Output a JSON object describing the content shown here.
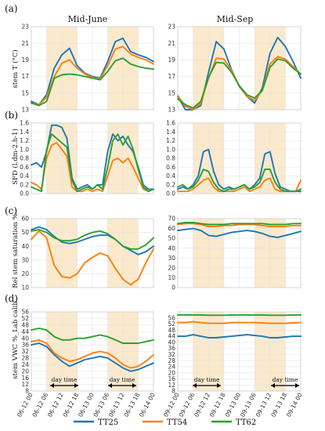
{
  "figure": {
    "column_titles": [
      "Mid-June",
      "Mid-Sep"
    ],
    "panel_letters": [
      "(a)",
      "(b)",
      "(c)",
      "(d)"
    ],
    "ylabels": [
      "stem T (°C)",
      "SFD (l.dm-2.h-1)",
      "Rel stem saturation %",
      "stem VWC %_Lab calib"
    ],
    "day_time_label": "day time",
    "legend": [
      {
        "name": "TT25",
        "color": "#1f77b4"
      },
      {
        "name": "TT54",
        "color": "#ff7f0e"
      },
      {
        "name": "TT62",
        "color": "#2ca02c"
      }
    ],
    "shade_color": "#fbe9cc",
    "xticks": {
      "june": [
        "06-12 00",
        "06-12 06",
        "06-12 12",
        "06-12 18",
        "06-13 00",
        "06-13 06",
        "06-13 12",
        "06-13 18",
        "06-14 00"
      ],
      "sep": [
        "09-12 00",
        "09-12 06",
        "09-12 12",
        "09-12 18",
        "09-13 00",
        "09-13 06",
        "09-13 12",
        "09-13 18",
        "09-14 00"
      ]
    }
  },
  "chart_data": [
    {
      "type": "line",
      "panel": "a",
      "column": "Mid-June",
      "x_hours": [
        0,
        3,
        6,
        9,
        12,
        15,
        18,
        21,
        24,
        27,
        30,
        33,
        36,
        39,
        42,
        45,
        48
      ],
      "ylim": [
        13,
        23
      ],
      "yticks": [
        13,
        15,
        17,
        19,
        21,
        23
      ],
      "series": [
        {
          "name": "TT25",
          "values": [
            14.0,
            13.6,
            14.8,
            18.0,
            19.6,
            20.4,
            18.3,
            17.4,
            17.0,
            16.8,
            18.8,
            21.2,
            21.6,
            20.0,
            19.6,
            19.3,
            18.8
          ]
        },
        {
          "name": "TT54",
          "values": [
            13.8,
            13.6,
            14.5,
            17.0,
            18.6,
            19.0,
            18.0,
            17.3,
            16.9,
            16.7,
            18.3,
            20.3,
            20.6,
            19.7,
            19.3,
            19.0,
            18.5
          ]
        },
        {
          "name": "TT62",
          "values": [
            13.8,
            13.5,
            14.0,
            16.8,
            17.2,
            17.3,
            17.2,
            17.0,
            16.8,
            16.6,
            17.6,
            18.9,
            19.2,
            18.5,
            18.2,
            18.0,
            17.9
          ]
        }
      ]
    },
    {
      "type": "line",
      "panel": "a",
      "column": "Mid-Sep",
      "x_hours": [
        0,
        3,
        6,
        9,
        12,
        15,
        18,
        21,
        24,
        27,
        30,
        33,
        36,
        39,
        42,
        45,
        48
      ],
      "ylim": [
        13,
        23
      ],
      "yticks": [
        13,
        15,
        17,
        19,
        21,
        23
      ],
      "series": [
        {
          "name": "TT25",
          "values": [
            14.6,
            13.0,
            12.3,
            13.5,
            17.5,
            21.2,
            20.3,
            17.8,
            15.8,
            14.6,
            13.8,
            15.6,
            19.8,
            21.7,
            20.6,
            18.8,
            16.8
          ]
        },
        {
          "name": "TT54",
          "values": [
            14.7,
            13.4,
            12.9,
            13.8,
            16.8,
            19.2,
            19.1,
            17.7,
            15.9,
            14.6,
            14.1,
            15.3,
            18.5,
            19.4,
            19.1,
            18.2,
            17.3
          ]
        },
        {
          "name": "TT62",
          "values": [
            14.3,
            13.6,
            13.2,
            14.0,
            16.9,
            18.7,
            18.6,
            17.5,
            15.9,
            14.8,
            14.4,
            15.3,
            18.1,
            19.1,
            18.9,
            18.0,
            17.3
          ]
        }
      ]
    },
    {
      "type": "line",
      "panel": "b",
      "column": "Mid-June",
      "x_hours": [
        0,
        2,
        4,
        6,
        8,
        10,
        12,
        14,
        16,
        18,
        20,
        22,
        24,
        26,
        28,
        30,
        32,
        34,
        36,
        38,
        40,
        42,
        44,
        46,
        48
      ],
      "ylim": [
        0,
        1.6
      ],
      "yticks": [
        0.0,
        0.2,
        0.4,
        0.6,
        0.8,
        1.0,
        1.2,
        1.4,
        1.6
      ],
      "series": [
        {
          "name": "TT25",
          "values": [
            0.65,
            0.7,
            0.6,
            0.95,
            1.55,
            1.55,
            1.5,
            1.25,
            0.35,
            0.1,
            0.15,
            0.2,
            0.1,
            0.2,
            0.2,
            0.95,
            1.35,
            1.2,
            1.3,
            1.1,
            0.95,
            0.6,
            0.2,
            0.1,
            0.1
          ]
        },
        {
          "name": "TT54",
          "values": [
            0.25,
            0.2,
            0.1,
            0.8,
            1.1,
            1.15,
            1.0,
            0.85,
            0.15,
            0.05,
            0.05,
            0.1,
            0.05,
            0.1,
            0.05,
            0.4,
            0.75,
            0.8,
            0.7,
            0.8,
            0.6,
            0.35,
            0.1,
            0.05,
            0.1
          ]
        },
        {
          "name": "TT62",
          "values": [
            0.15,
            0.1,
            0.05,
            1.0,
            1.35,
            1.25,
            1.15,
            1.05,
            0.3,
            0.05,
            0.1,
            0.15,
            0.1,
            0.2,
            0.1,
            0.6,
            1.2,
            1.35,
            1.1,
            1.3,
            1.0,
            0.55,
            0.15,
            0.05,
            0.1
          ]
        }
      ]
    },
    {
      "type": "line",
      "panel": "b",
      "column": "Mid-Sep",
      "x_hours": [
        0,
        2,
        4,
        6,
        8,
        10,
        12,
        14,
        16,
        18,
        20,
        22,
        24,
        26,
        28,
        30,
        32,
        34,
        36,
        38,
        40,
        42,
        44,
        46,
        48
      ],
      "ylim": [
        0,
        1.6
      ],
      "yticks": [
        0.0,
        0.2,
        0.4,
        0.6,
        0.8,
        1.0,
        1.2,
        1.4,
        1.6
      ],
      "series": [
        {
          "name": "TT25",
          "values": [
            0.1,
            0.15,
            0.1,
            0.2,
            0.4,
            0.95,
            1.0,
            0.5,
            0.2,
            0.1,
            0.15,
            0.1,
            0.15,
            0.2,
            0.1,
            0.2,
            0.35,
            0.9,
            0.95,
            0.45,
            0.15,
            0.1,
            0.05,
            0.05,
            0.05
          ]
        },
        {
          "name": "TT54",
          "values": [
            0.05,
            0.05,
            0.05,
            0.1,
            0.2,
            0.3,
            0.35,
            0.15,
            0.05,
            0.05,
            0.05,
            0.05,
            0.1,
            0.15,
            0.05,
            0.1,
            0.15,
            0.3,
            0.35,
            0.1,
            0.05,
            0.05,
            0.05,
            0.05,
            0.3
          ]
        },
        {
          "name": "TT62",
          "values": [
            0.15,
            0.2,
            0.1,
            0.15,
            0.3,
            0.55,
            0.5,
            0.25,
            0.1,
            0.05,
            0.1,
            0.1,
            0.15,
            0.2,
            0.1,
            0.15,
            0.25,
            0.55,
            0.55,
            0.25,
            0.1,
            0.05,
            0.05,
            0.05,
            0.1
          ]
        }
      ]
    },
    {
      "type": "line",
      "panel": "c",
      "column": "Mid-June",
      "x_hours": [
        0,
        3,
        6,
        9,
        12,
        15,
        18,
        21,
        24,
        27,
        30,
        33,
        36,
        39,
        42,
        45,
        48
      ],
      "ylim": [
        10,
        60
      ],
      "yticks": [
        10,
        20,
        30,
        40,
        50,
        60
      ],
      "series": [
        {
          "name": "TT25",
          "values": [
            52,
            54,
            52,
            47,
            43,
            42,
            43,
            45,
            47,
            48,
            48,
            45,
            40,
            37,
            34,
            36,
            40
          ]
        },
        {
          "name": "TT54",
          "values": [
            45,
            51,
            46,
            26,
            18,
            17,
            20,
            28,
            32,
            35,
            33,
            24,
            16,
            12,
            16,
            28,
            38
          ]
        },
        {
          "name": "TT62",
          "values": [
            51,
            52,
            50,
            46,
            44,
            44,
            45,
            48,
            50,
            51,
            49,
            45,
            40,
            38,
            38,
            41,
            46
          ]
        }
      ]
    },
    {
      "type": "line",
      "panel": "c",
      "column": "Mid-Sep",
      "x_hours": [
        0,
        3,
        6,
        9,
        12,
        15,
        18,
        21,
        24,
        27,
        30,
        33,
        36,
        39,
        42,
        45,
        48
      ],
      "ylim": [
        0,
        70
      ],
      "yticks": [
        0,
        10,
        20,
        30,
        40,
        50,
        60,
        70
      ],
      "series": [
        {
          "name": "TT25",
          "values": [
            58,
            59,
            60,
            58,
            53,
            52,
            54,
            56,
            57,
            58,
            57,
            55,
            52,
            51,
            53,
            55,
            57
          ]
        },
        {
          "name": "TT54",
          "values": [
            64,
            65,
            65,
            64,
            62,
            62,
            63,
            63,
            64,
            64,
            64,
            63,
            62,
            62,
            62,
            63,
            63
          ]
        },
        {
          "name": "TT62",
          "values": [
            65,
            66,
            66,
            65,
            64,
            64,
            64,
            65,
            65,
            65,
            65,
            65,
            64,
            64,
            64,
            65,
            65
          ]
        }
      ]
    },
    {
      "type": "line",
      "panel": "d",
      "column": "Mid-June",
      "x_hours": [
        0,
        3,
        6,
        9,
        12,
        15,
        18,
        21,
        24,
        27,
        30,
        33,
        36,
        39,
        42,
        45,
        48
      ],
      "ylim": [
        8,
        56
      ],
      "yticks": [
        8,
        12,
        16,
        20,
        24,
        28,
        32,
        36,
        40,
        44,
        48,
        52,
        56
      ],
      "series": [
        {
          "name": "TT25",
          "values": [
            36,
            37,
            35,
            30,
            26,
            23,
            25,
            27,
            28,
            29,
            28,
            25,
            22,
            20,
            21,
            23,
            25
          ]
        },
        {
          "name": "TT54",
          "values": [
            38,
            39,
            37,
            31,
            28,
            26,
            27,
            29,
            31,
            32,
            31,
            28,
            24,
            22,
            23,
            26,
            30
          ]
        },
        {
          "name": "TT62",
          "values": [
            45,
            46,
            45,
            41,
            39,
            39,
            40,
            40,
            41,
            42,
            41,
            39,
            37,
            37,
            37,
            38,
            39
          ]
        }
      ]
    },
    {
      "type": "line",
      "panel": "d",
      "column": "Mid-Sep",
      "x_hours": [
        0,
        3,
        6,
        9,
        12,
        15,
        18,
        21,
        24,
        27,
        30,
        33,
        36,
        39,
        42,
        45,
        48
      ],
      "ylim": [
        8,
        60
      ],
      "yticks": [
        8,
        12,
        16,
        20,
        24,
        28,
        32,
        36,
        40,
        44,
        48,
        52,
        56
      ],
      "series": [
        {
          "name": "TT25",
          "values": [
            44,
            44,
            45,
            44,
            43,
            43,
            43.5,
            44,
            44.5,
            45,
            44.5,
            44,
            43,
            43,
            43.5,
            44,
            44
          ]
        },
        {
          "name": "TT54",
          "values": [
            53,
            53,
            53.5,
            53,
            52.5,
            52.5,
            52.5,
            53,
            53,
            53,
            53,
            52.8,
            52.5,
            52.5,
            52.5,
            52.8,
            53
          ]
        },
        {
          "name": "TT62",
          "values": [
            58,
            58,
            58,
            58,
            57.8,
            57.8,
            57.8,
            58,
            58,
            58,
            58,
            58,
            57.8,
            57.8,
            57.8,
            58,
            58
          ]
        }
      ]
    }
  ]
}
